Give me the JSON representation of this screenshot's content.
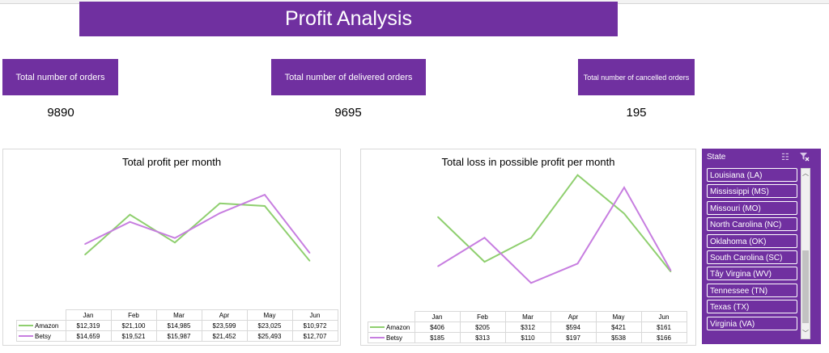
{
  "dashboard": {
    "title": "Profit Analysis",
    "kpis": [
      {
        "label": "Total number of orders",
        "value": "9890"
      },
      {
        "label": "Total number of delivered orders",
        "value": "9695"
      },
      {
        "label": "Total number of cancelled orders",
        "value": "195"
      }
    ]
  },
  "colors": {
    "accent": "#7030a0",
    "amazon": "#8fcf6f",
    "betsy": "#c77ee0"
  },
  "chart_data": [
    {
      "type": "line",
      "title": "Total profit per month",
      "categories": [
        "Jan",
        "Feb",
        "Mar",
        "Apr",
        "May",
        "Jun"
      ],
      "series": [
        {
          "name": "Amazon",
          "values": [
            12319,
            21100,
            14985,
            23599,
            23025,
            10972
          ],
          "labels": [
            "$12,319",
            "$21,100",
            "$14,985",
            "$23,599",
            "$23,025",
            "$10,972"
          ]
        },
        {
          "name": "Betsy",
          "values": [
            14659,
            19521,
            15987,
            21452,
            25493,
            12707
          ],
          "labels": [
            "$14,659",
            "$19,521",
            "$15,987",
            "$21,452",
            "$25,493",
            "$12,707"
          ]
        }
      ],
      "grid": false,
      "legend": "data-table"
    },
    {
      "type": "line",
      "title": "Total loss in possible profit per month",
      "categories": [
        "Jan",
        "Feb",
        "Mar",
        "Apr",
        "May",
        "Jun"
      ],
      "series": [
        {
          "name": "Amazon",
          "values": [
            406,
            205,
            312,
            594,
            421,
            161
          ],
          "labels": [
            "$406",
            "$205",
            "$312",
            "$594",
            "$421",
            "$161"
          ]
        },
        {
          "name": "Betsy",
          "values": [
            185,
            313,
            110,
            197,
            538,
            166
          ],
          "labels": [
            "$185",
            "$313",
            "$110",
            "$197",
            "$538",
            "$166"
          ]
        }
      ],
      "grid": false,
      "legend": "data-table"
    }
  ],
  "slicer": {
    "header": "State",
    "multi_select_icon": "multi-select-icon",
    "clear_filter_icon": "clear-filter-icon",
    "items": [
      "Louisiana (LA)",
      "Mississippi (MS)",
      "Missouri (MO)",
      "North Carolina (NC)",
      "Oklahoma (OK)",
      "South Carolina (SC)",
      "Tây Virgina (WV)",
      "Tennessee (TN)",
      "Texas (TX)",
      "Virginia (VA)"
    ]
  }
}
